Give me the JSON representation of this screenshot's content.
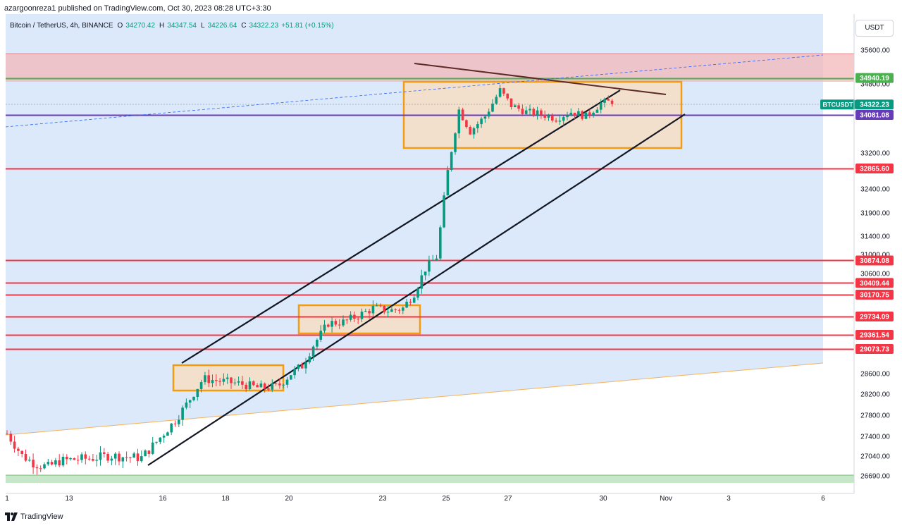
{
  "header": {
    "publisher_line": "azargoonreza1 published on TradingView.com, Oct 30, 2023 08:28 UTC+3:30",
    "symbol_title": "Bitcoin / TetherUS, 4h, BINANCE",
    "open_label": "O",
    "open_value": "34270.42",
    "high_label": "H",
    "high_value": "34347.54",
    "low_label": "L",
    "low_value": "34226.64",
    "close_label": "C",
    "close_value": "34322.23",
    "change_value": "+51.81 (+0.15%)"
  },
  "currency_button": "USDT",
  "footer": {
    "brand": "TradingView"
  },
  "chart_data": {
    "type": "candlestick",
    "symbol": "BTCUSDT",
    "timeframe": "4h",
    "y_ticks": [
      35600,
      34800,
      33200,
      32400,
      31900,
      31400,
      31000,
      30600,
      28600,
      28200,
      27800,
      27400,
      27040,
      26690
    ],
    "x_ticks": [
      "1",
      "13",
      "16",
      "18",
      "20",
      "23",
      "25",
      "27",
      "30",
      "Nov",
      "3",
      "6"
    ],
    "horizontal_levels": [
      {
        "value": 34940.19,
        "label": "34940.19",
        "color": "#4caf50"
      },
      {
        "value": 34081.08,
        "label": "34081.08",
        "color": "#673ab7"
      },
      {
        "value": 32865.6,
        "label": "32865.60",
        "color": "#f23645"
      },
      {
        "value": 30874.08,
        "label": "30874.08",
        "color": "#f23645"
      },
      {
        "value": 30409.44,
        "label": "30409.44",
        "color": "#f23645"
      },
      {
        "value": 30170.75,
        "label": "30170.75",
        "color": "#f23645"
      },
      {
        "value": 29734.09,
        "label": "29734.09",
        "color": "#f23645"
      },
      {
        "value": 29361.54,
        "label": "29361.54",
        "color": "#f23645"
      },
      {
        "value": 29073.73,
        "label": "29073.73",
        "color": "#f23645"
      }
    ],
    "last_price": {
      "label": "BTCUSDT",
      "value": "34322.23",
      "color": "#089981"
    },
    "colors": {
      "up": "#089981",
      "down": "#f23645",
      "background_zone": "#dbe9fb",
      "resistance_zone": "#f3b7b9",
      "consolidation_box": "#f39c12",
      "trendline": "#131722"
    }
  }
}
